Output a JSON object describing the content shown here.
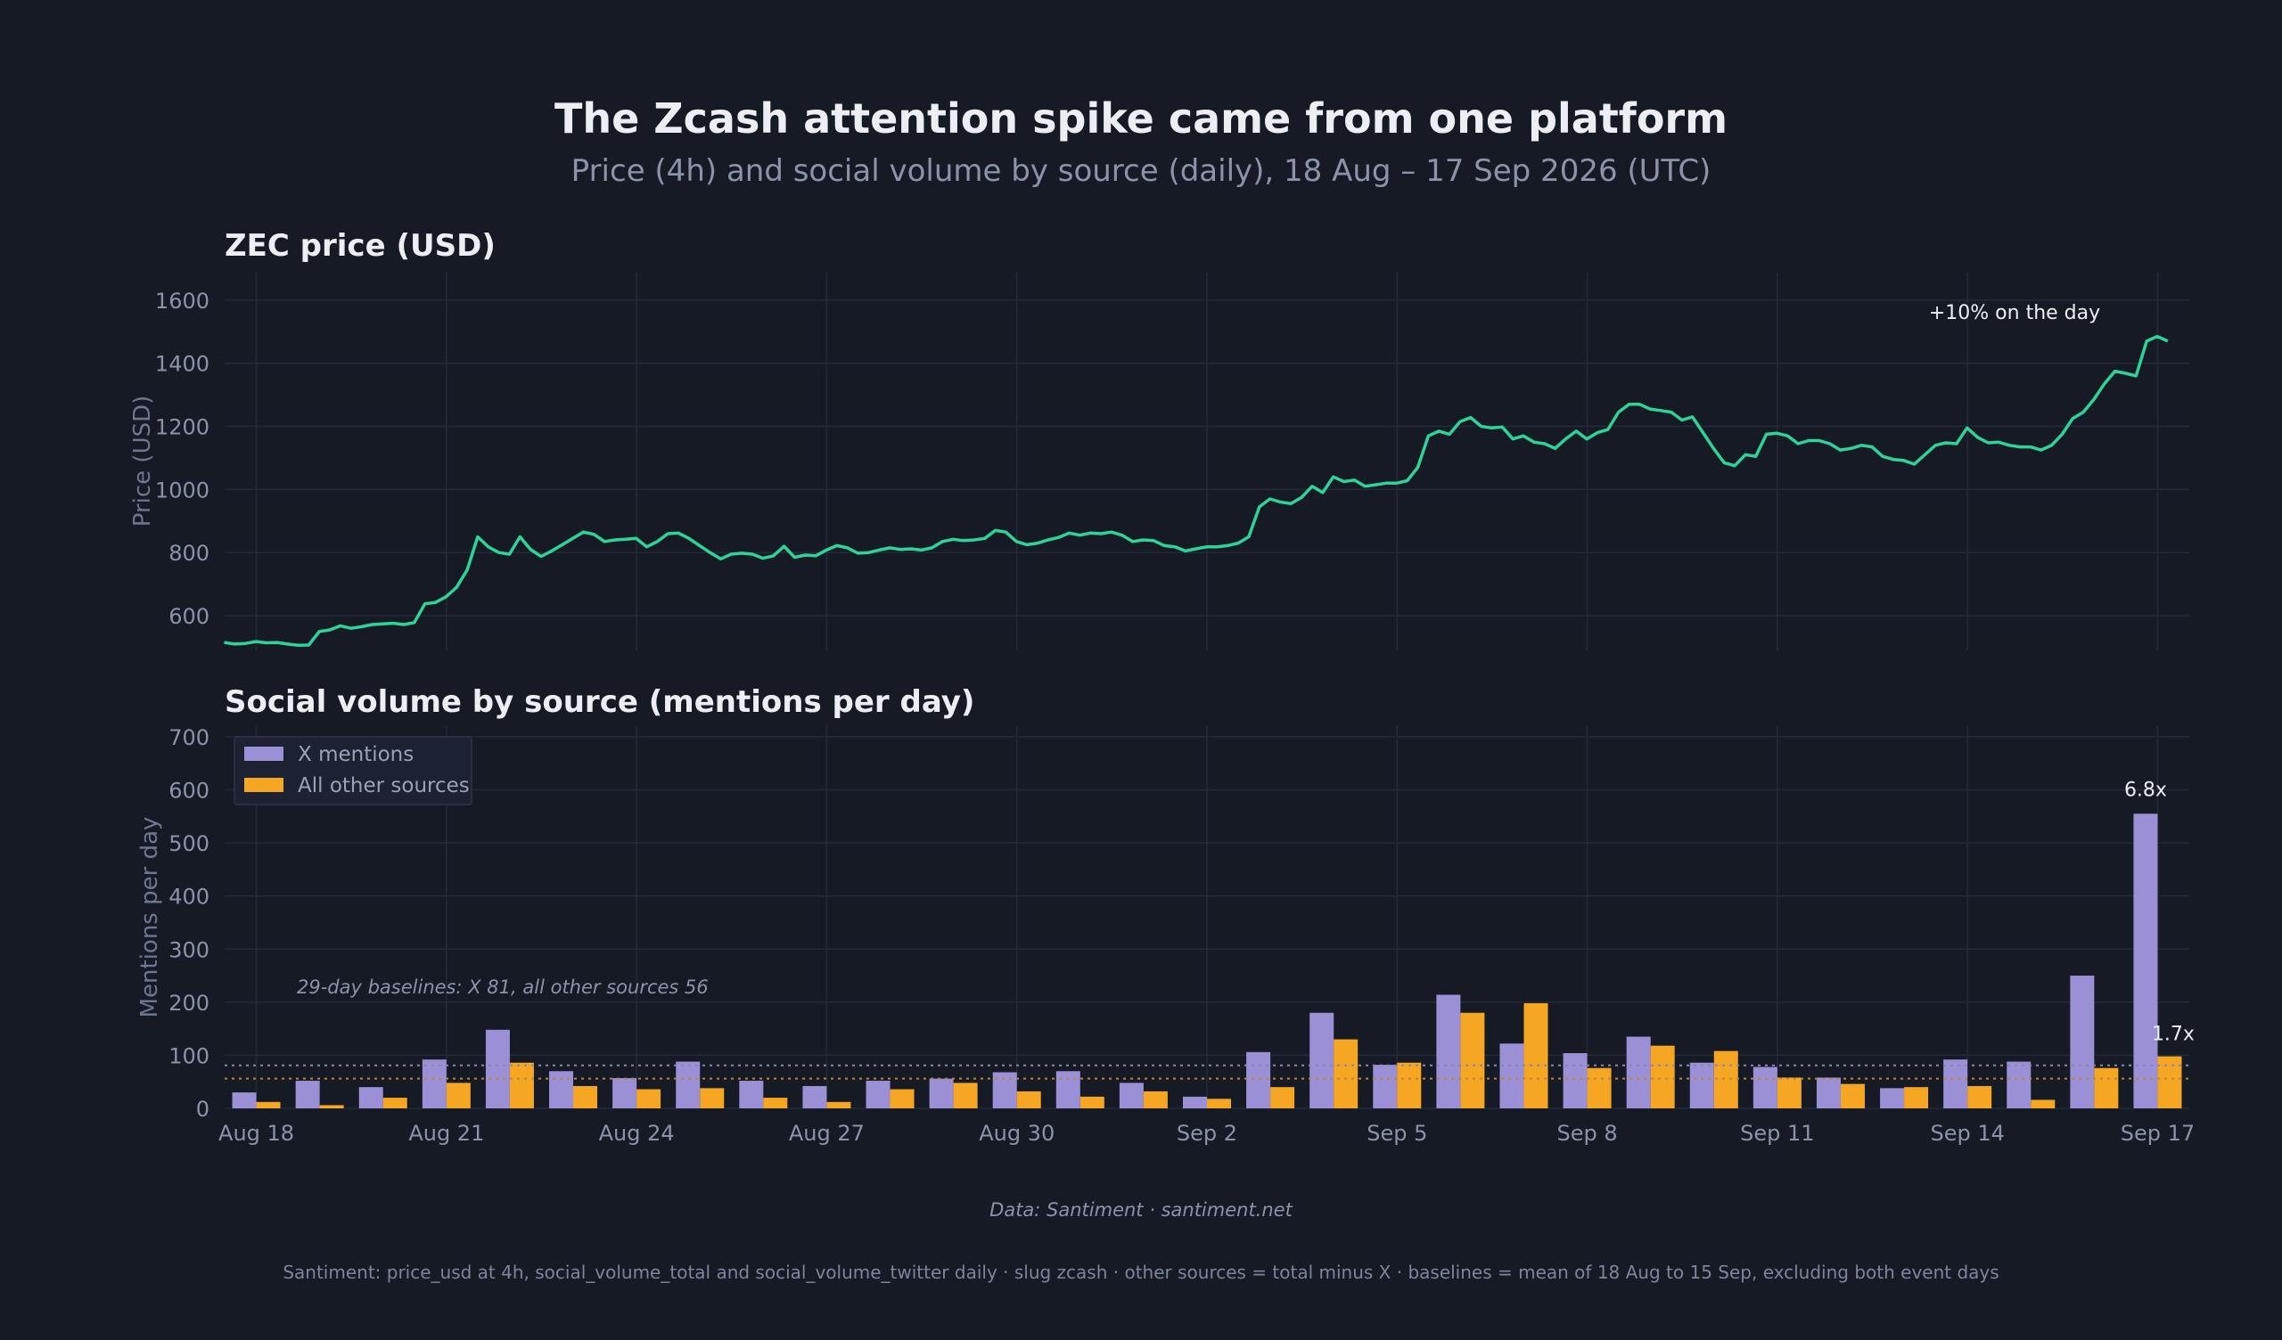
{
  "title": "The Zcash attention spike came from one platform",
  "subtitle": "Price (4h) and social volume by source (daily), 18 Aug – 17 Sep 2026 (UTC)",
  "source": "Data: Santiment · santiment.net",
  "footnote": "Santiment: price_usd at 4h, social_volume_total and social_volume_twitter daily · slug zcash · other sources = total minus X · baselines = mean of 18 Aug to 15 Sep, excluding both event days",
  "colors": {
    "background": "#151a25",
    "price_line": "#2fd39a",
    "x_mentions": "#9b8fd6",
    "other_sources": "#f5a623",
    "grid": "#232a38"
  },
  "chart_data": [
    {
      "type": "line",
      "title": "ZEC price (USD)",
      "ylabel": "Price (USD)",
      "ylim": [
        490,
        1690
      ],
      "yticks": [
        600,
        800,
        1000,
        1200,
        1400,
        1600
      ],
      "x_start": "Aug 18",
      "x_interval": "4h",
      "series": [
        {
          "values": [
            515,
            510,
            512,
            518,
            514,
            515,
            510,
            506,
            507,
            550,
            555,
            568,
            560,
            565,
            572,
            574,
            576,
            572,
            578,
            638,
            642,
            660,
            690,
            745,
            850,
            818,
            800,
            795,
            850,
            810,
            788,
            805,
            825,
            845,
            865,
            858,
            835,
            840,
            842,
            845,
            818,
            835,
            860,
            862,
            845,
            822,
            800,
            780,
            795,
            798,
            795,
            782,
            790,
            820,
            785,
            792,
            790,
            808,
            822,
            815,
            798,
            800,
            808,
            815,
            810,
            812,
            808,
            815,
            835,
            842,
            838,
            840,
            845,
            870,
            865,
            835,
            825,
            830,
            840,
            848,
            862,
            855,
            862,
            860,
            865,
            855,
            835,
            840,
            838,
            822,
            818,
            805,
            812,
            818,
            818,
            822,
            830,
            850,
            945,
            970,
            960,
            955,
            975,
            1010,
            990,
            1040,
            1025,
            1030,
            1010,
            1015,
            1020,
            1020,
            1028,
            1070,
            1170,
            1185,
            1175,
            1215,
            1228,
            1200,
            1195,
            1198,
            1160,
            1170,
            1150,
            1145,
            1130,
            1160,
            1185,
            1160,
            1180,
            1190,
            1245,
            1270,
            1270,
            1255,
            1250,
            1245,
            1220,
            1230,
            1180,
            1130,
            1085,
            1075,
            1110,
            1105,
            1175,
            1178,
            1170,
            1145,
            1155,
            1155,
            1145,
            1125,
            1130,
            1140,
            1135,
            1105,
            1095,
            1092,
            1080,
            1110,
            1140,
            1148,
            1145,
            1195,
            1165,
            1148,
            1150,
            1140,
            1135,
            1135,
            1125,
            1140,
            1175,
            1225,
            1245,
            1285,
            1335,
            1375,
            1368,
            1360,
            1470,
            1485,
            1470
          ]
        }
      ],
      "annotations": [
        {
          "text": "+10% on the day"
        }
      ]
    },
    {
      "type": "bar",
      "title": "Social volume by source (mentions per day)",
      "ylabel": "Mentions per day",
      "ylim": [
        0,
        720
      ],
      "yticks": [
        0,
        100,
        200,
        300,
        400,
        500,
        600,
        700
      ],
      "categories": [
        "Aug 18",
        "Aug 19",
        "Aug 20",
        "Aug 21",
        "Aug 22",
        "Aug 23",
        "Aug 24",
        "Aug 25",
        "Aug 26",
        "Aug 27",
        "Aug 28",
        "Aug 29",
        "Aug 30",
        "Aug 31",
        "Sep 1",
        "Sep 2",
        "Sep 3",
        "Sep 4",
        "Sep 5",
        "Sep 6",
        "Sep 7",
        "Sep 8",
        "Sep 9",
        "Sep 10",
        "Sep 11",
        "Sep 12",
        "Sep 13",
        "Sep 14",
        "Sep 15",
        "Sep 16",
        "Sep 17"
      ],
      "x_tick_labels": [
        "Aug 18",
        "Aug 21",
        "Aug 24",
        "Aug 27",
        "Aug 30",
        "Sep 2",
        "Sep 5",
        "Sep 8",
        "Sep 11",
        "Sep 14",
        "Sep 17"
      ],
      "series": [
        {
          "name": "X mentions",
          "values": [
            30,
            52,
            40,
            92,
            148,
            70,
            57,
            88,
            52,
            42,
            52,
            56,
            68,
            70,
            48,
            22,
            106,
            180,
            82,
            214,
            122,
            104,
            135,
            86,
            78,
            58,
            38,
            92,
            88,
            250,
            555
          ]
        },
        {
          "name": "All other sources",
          "values": [
            12,
            6,
            20,
            48,
            86,
            42,
            36,
            38,
            20,
            12,
            36,
            48,
            32,
            22,
            32,
            18,
            40,
            130,
            86,
            180,
            198,
            76,
            118,
            108,
            58,
            46,
            40,
            42,
            16,
            76,
            98
          ]
        }
      ],
      "baselines": {
        "x": 81,
        "other": 56
      },
      "baseline_note": "29-day baselines: X 81, all other sources 56",
      "legend_position": "top-left",
      "annotations": [
        {
          "text": "6.8x"
        },
        {
          "text": "1.7x"
        }
      ]
    }
  ]
}
